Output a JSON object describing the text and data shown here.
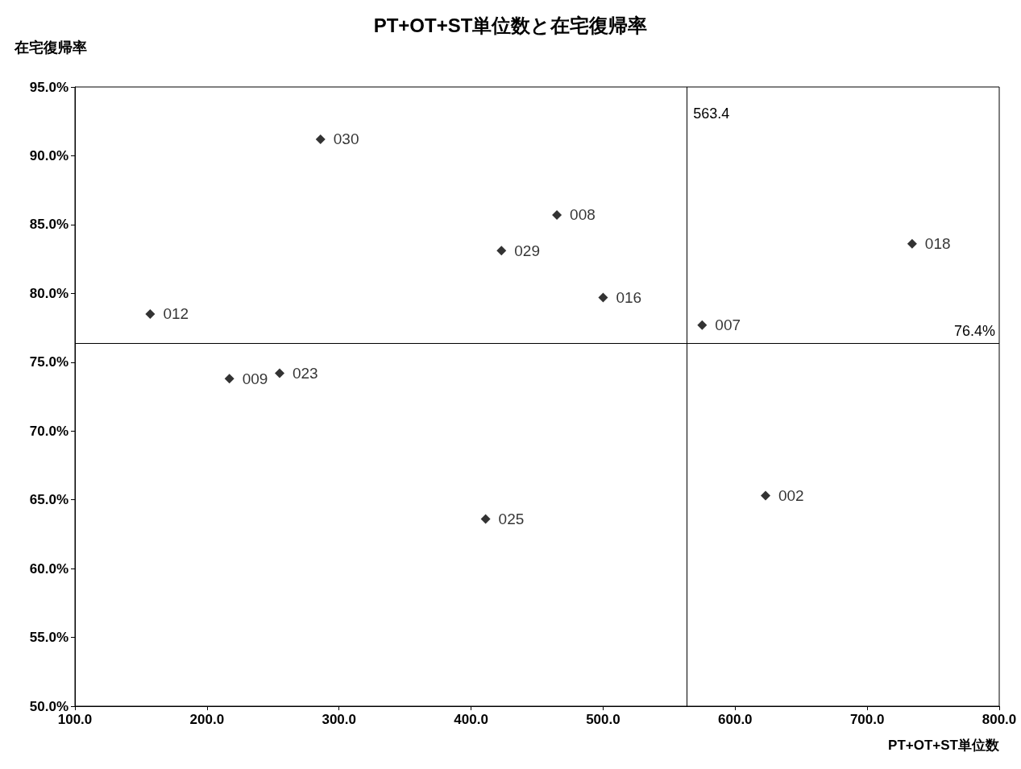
{
  "chart_data": {
    "type": "scatter",
    "title": "PT+OT+ST単位数と在宅復帰率",
    "xlabel": "PT+OT+ST単位数",
    "ylabel": "在宅復帰率",
    "xlim": [
      100,
      800
    ],
    "ylim": [
      50,
      95
    ],
    "xticks": [
      {
        "value": 100,
        "label": "100.0"
      },
      {
        "value": 200,
        "label": "200.0"
      },
      {
        "value": 300,
        "label": "300.0"
      },
      {
        "value": 400,
        "label": "400.0"
      },
      {
        "value": 500,
        "label": "500.0"
      },
      {
        "value": 600,
        "label": "600.0"
      },
      {
        "value": 700,
        "label": "700.0"
      },
      {
        "value": 800,
        "label": "800.0"
      }
    ],
    "yticks": [
      {
        "value": 50,
        "label": "50.0%"
      },
      {
        "value": 55,
        "label": "55.0%"
      },
      {
        "value": 60,
        "label": "60.0%"
      },
      {
        "value": 65,
        "label": "65.0%"
      },
      {
        "value": 70,
        "label": "70.0%"
      },
      {
        "value": 75,
        "label": "75.0%"
      },
      {
        "value": 80,
        "label": "80.0%"
      },
      {
        "value": 85,
        "label": "85.0%"
      },
      {
        "value": 90,
        "label": "90.0%"
      },
      {
        "value": 95,
        "label": "95.0%"
      }
    ],
    "grid": false,
    "marker": "diamond",
    "series": [
      {
        "name": "030",
        "color": "#000000",
        "x": [
          286
        ],
        "values": [
          91.2
        ]
      },
      {
        "name": "008",
        "color": "#000000",
        "x": [
          465
        ],
        "values": [
          85.7
        ]
      },
      {
        "name": "029",
        "color": "#000000",
        "x": [
          423
        ],
        "values": [
          83.1
        ]
      },
      {
        "name": "016",
        "color": "#000000",
        "x": [
          500
        ],
        "values": [
          79.7
        ]
      },
      {
        "name": "012",
        "color": "#000000",
        "x": [
          157
        ],
        "values": [
          78.5
        ]
      },
      {
        "name": "007",
        "color": "#000000",
        "x": [
          575
        ],
        "values": [
          77.7
        ]
      },
      {
        "name": "018",
        "color": "#000000",
        "x": [
          734
        ],
        "values": [
          83.6
        ]
      },
      {
        "name": "009",
        "color": "#000000",
        "x": [
          217
        ],
        "values": [
          73.8
        ]
      },
      {
        "name": "023",
        "color": "#000000",
        "x": [
          255
        ],
        "values": [
          74.2
        ]
      },
      {
        "name": "025",
        "color": "#000000",
        "x": [
          411
        ],
        "values": [
          63.6
        ]
      },
      {
        "name": "002",
        "color": "#000000",
        "x": [
          623
        ],
        "values": [
          65.3
        ]
      }
    ],
    "ref_lines": [
      {
        "axis": "x",
        "value": 563.4,
        "label": "563.4"
      },
      {
        "axis": "y",
        "value": 76.4,
        "label": "76.4%"
      }
    ]
  }
}
